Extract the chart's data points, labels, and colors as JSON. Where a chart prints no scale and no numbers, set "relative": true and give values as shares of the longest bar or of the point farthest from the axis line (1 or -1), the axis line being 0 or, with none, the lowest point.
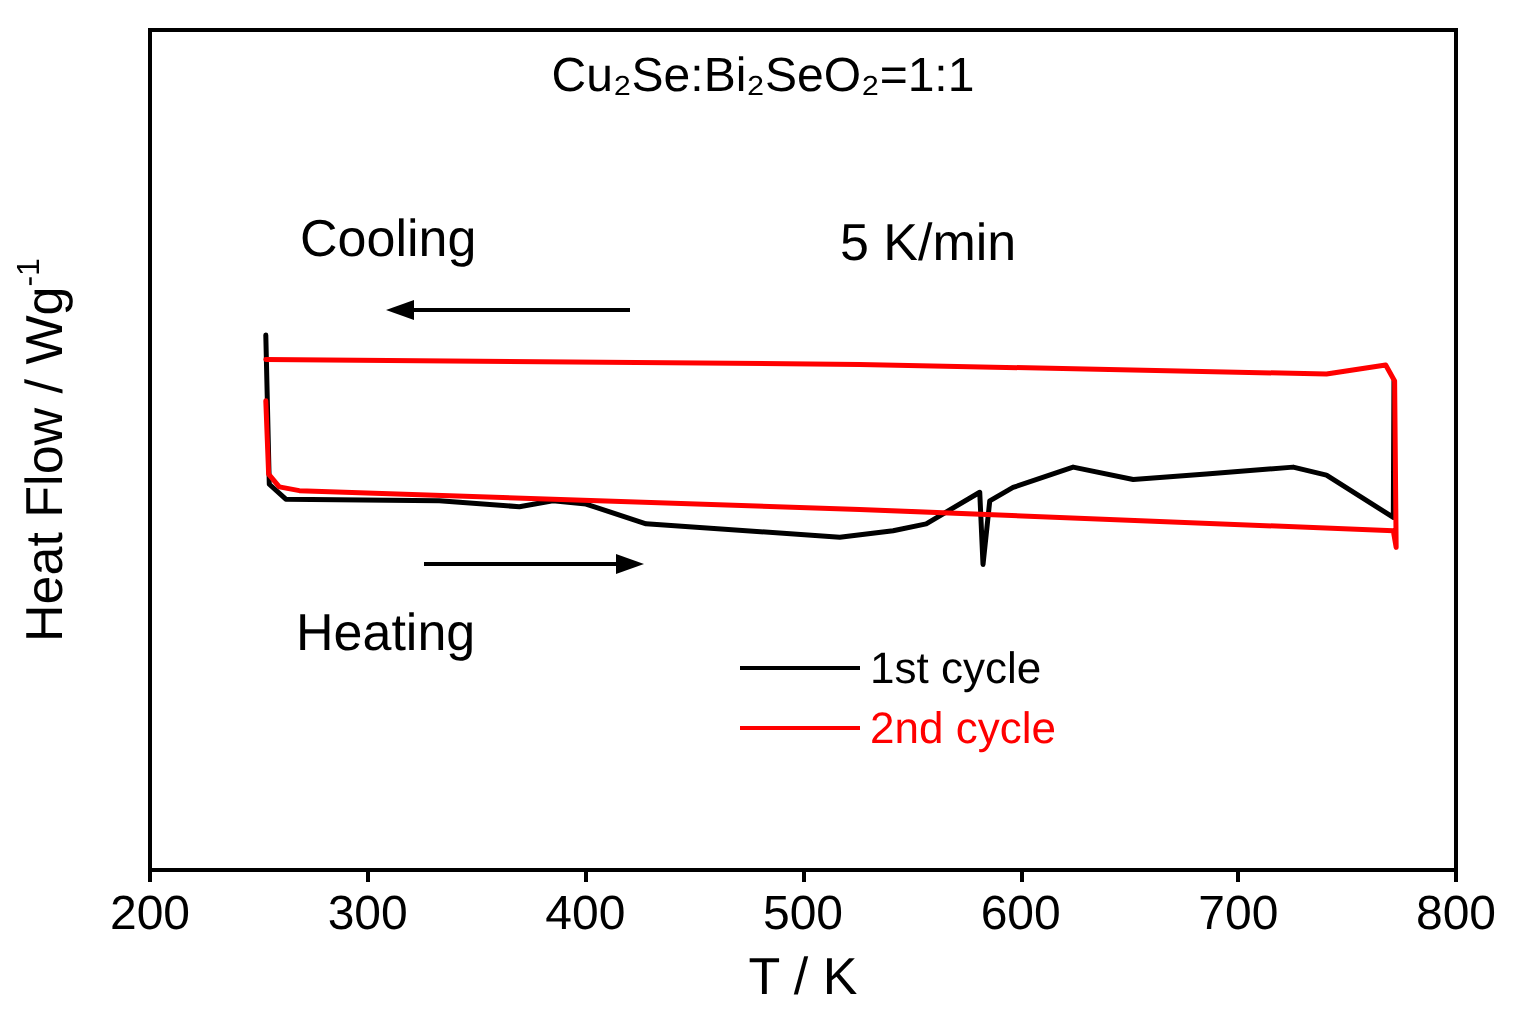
{
  "chart_data": {
    "type": "line",
    "relative": true,
    "title": "Cu₂Se:Bi₂SeO₂=1:1",
    "xlabel": "T / K",
    "ylabel": "Heat Flow / Wg$^{-1}$",
    "xlim": [
      200,
      800
    ],
    "xticks": [
      200,
      300,
      400,
      500,
      600,
      700,
      800
    ],
    "legend": "bottom right",
    "marker": "none",
    "line_style": "solid",
    "annotations": [
      "5 K/min",
      "Cooling",
      "Heating"
    ],
    "series": [
      {
        "name": "1st cycle",
        "color": "#000000",
        "x": [
          253.2,
          254.8,
          262.4,
          332.9,
          369.7,
          385.1,
          400.3,
          427.9,
          516.9,
          541.4,
          556.6,
          581.2,
          582.7,
          585.8,
          596.5,
          624.1,
          651.7,
          685.3,
          725.2,
          740.5,
          771.2,
          771.5
        ],
        "values": [
          1.0,
          0.721,
          0.693,
          0.69,
          0.679,
          0.69,
          0.684,
          0.647,
          0.622,
          0.634,
          0.647,
          0.706,
          0.571,
          0.69,
          0.715,
          0.753,
          0.73,
          0.74,
          0.753,
          0.738,
          0.659,
          0.914
        ]
      },
      {
        "name": "2nd cycle",
        "color": "#ff0000",
        "x": [
          253.2,
          254.5,
          259.4,
          268.6,
          526,
          771.2,
          772.5,
          771.8,
          767.7,
          740.5,
          526,
          253.2
        ],
        "values": [
          0.877,
          0.74,
          0.716,
          0.709,
          0.674,
          0.634,
          0.603,
          0.914,
          0.944,
          0.927,
          0.945,
          0.954
        ]
      }
    ]
  }
}
